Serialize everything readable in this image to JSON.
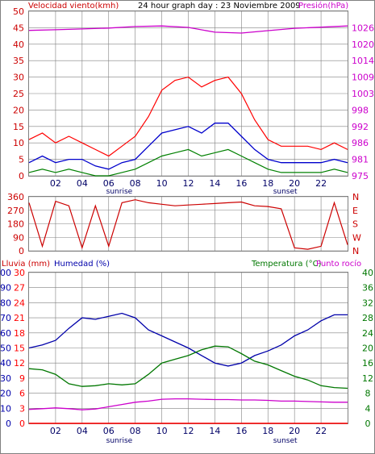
{
  "header": {
    "left": "Velocidad viento(kmh)",
    "center": "24 hour graph day : 23 Noviembre 2009",
    "right": "Presión(hPa)"
  },
  "colors": {
    "wind_avg": "#0000cc",
    "wind_gust": "#ff0000",
    "wind_low": "#008000",
    "pressure": "#cc00cc",
    "direction": "#cc0000",
    "humidity": "#0000aa",
    "temperature": "#007700",
    "dewpoint": "#cc00cc",
    "rain": "#ff0000",
    "grid": "#808080",
    "axis_labels_left": "#cc0000",
    "axis_labels_right": "#cc00cc"
  },
  "x_axis": {
    "hour_ticks": [
      "02",
      "04",
      "06",
      "08",
      "10",
      "12",
      "14",
      "16",
      "18",
      "20",
      "22"
    ],
    "sunrise": "sunrise",
    "sunset": "sunset"
  },
  "chart_data": [
    {
      "type": "line",
      "panel": "wind-pressure",
      "ylabel_left": "Velocidad viento(kmh)",
      "ylabel_right": "Presión(hPa)",
      "left_ticks": [
        "0",
        "5",
        "10",
        "15",
        "20",
        "25",
        "30",
        "35",
        "40",
        "45",
        "50"
      ],
      "right_ticks": [
        "975",
        "981",
        "986",
        "992",
        "998",
        "1003",
        "1009",
        "1014",
        "1020",
        "1026"
      ],
      "ylim_left": [
        0,
        50
      ],
      "ylim_right": [
        975,
        1031
      ],
      "series": [
        {
          "name": "Presión(hPa)",
          "x": [
            0,
            2,
            4,
            6,
            8,
            10,
            12,
            14,
            16,
            18,
            20,
            22,
            24
          ],
          "values": [
            1024.5,
            1024.7,
            1025.0,
            1025.3,
            1025.8,
            1026.0,
            1025.5,
            1023.9,
            1023.6,
            1024.4,
            1025.2,
            1025.6,
            1026.0
          ]
        },
        {
          "name": "Velocidad viento(kmh)",
          "x": [
            0,
            1,
            2,
            3,
            4,
            5,
            6,
            7,
            8,
            9,
            10,
            11,
            12,
            13,
            14,
            15,
            16,
            17,
            18,
            19,
            20,
            21,
            22,
            23,
            24
          ],
          "values": [
            4,
            6,
            4,
            5,
            5,
            3,
            2,
            4,
            5,
            9,
            13,
            14,
            15,
            13,
            16,
            16,
            12,
            8,
            5,
            4,
            4,
            4,
            4,
            5,
            4
          ]
        },
        {
          "name": "gust",
          "x": [
            0,
            1,
            2,
            3,
            4,
            5,
            6,
            7,
            8,
            9,
            10,
            11,
            12,
            13,
            14,
            15,
            16,
            17,
            18,
            19,
            20,
            21,
            22,
            23,
            24
          ],
          "values": [
            11,
            13,
            10,
            12,
            10,
            8,
            6,
            9,
            12,
            18,
            26,
            29,
            30,
            27,
            29,
            30,
            25,
            17,
            11,
            9,
            9,
            9,
            8,
            10,
            8
          ]
        },
        {
          "name": "low",
          "x": [
            0,
            1,
            2,
            3,
            4,
            5,
            6,
            7,
            8,
            9,
            10,
            11,
            12,
            13,
            14,
            15,
            16,
            17,
            18,
            19,
            20,
            21,
            22,
            23,
            24
          ],
          "values": [
            1,
            2,
            1,
            2,
            1,
            0,
            0,
            1,
            2,
            4,
            6,
            7,
            8,
            6,
            7,
            8,
            6,
            4,
            2,
            1,
            1,
            1,
            1,
            2,
            1
          ]
        }
      ]
    },
    {
      "type": "line",
      "panel": "wind-direction",
      "left_ticks": [
        "0",
        "90",
        "180",
        "270",
        "360"
      ],
      "right_ticks": [
        "N",
        "E",
        "S",
        "W",
        "N"
      ],
      "ylim": [
        0,
        360
      ],
      "series": [
        {
          "name": "direction",
          "x": [
            0,
            1,
            2,
            3,
            4,
            5,
            6,
            7,
            8,
            9,
            10,
            11,
            12,
            13,
            14,
            15,
            16,
            17,
            18,
            19,
            20,
            21,
            22,
            23,
            24
          ],
          "values": [
            320,
            30,
            330,
            300,
            20,
            300,
            30,
            320,
            340,
            320,
            310,
            300,
            305,
            310,
            315,
            320,
            325,
            300,
            295,
            280,
            20,
            10,
            30,
            320,
            40
          ]
        }
      ]
    },
    {
      "type": "line",
      "panel": "humidity-temperature",
      "ylabel_left_1": "Lluvia (mm)",
      "ylabel_left_2": "Humedad (%)",
      "ylabel_right_1": "Temperatura (°C)",
      "ylabel_right_2": "Punto rocío",
      "rain_ticks": [
        "0",
        "3",
        "6",
        "9",
        "12",
        "15",
        "18",
        "21",
        "24",
        "27",
        "30"
      ],
      "humidity_ticks": [
        "0",
        "10",
        "20",
        "30",
        "40",
        "50",
        "60",
        "70",
        "80",
        "90",
        "100"
      ],
      "temp_ticks": [
        "0",
        "4",
        "8",
        "12",
        "16",
        "20",
        "24",
        "28",
        "32",
        "36",
        "40"
      ],
      "ylim_rain": [
        0,
        30
      ],
      "ylim_humidity": [
        0,
        100
      ],
      "ylim_temp": [
        0,
        40
      ],
      "series": [
        {
          "name": "Humedad (%)",
          "x": [
            0,
            1,
            2,
            3,
            4,
            5,
            6,
            7,
            8,
            9,
            10,
            11,
            12,
            13,
            14,
            15,
            16,
            17,
            18,
            19,
            20,
            21,
            22,
            23,
            24
          ],
          "values": [
            50,
            52,
            55,
            63,
            70,
            69,
            71,
            73,
            70,
            62,
            58,
            54,
            50,
            45,
            40,
            38,
            40,
            45,
            48,
            52,
            58,
            62,
            68,
            72,
            72
          ]
        },
        {
          "name": "Temperatura (°C)",
          "x": [
            0,
            1,
            2,
            3,
            4,
            5,
            6,
            7,
            8,
            9,
            10,
            11,
            12,
            13,
            14,
            15,
            16,
            17,
            18,
            19,
            20,
            21,
            22,
            23,
            24
          ],
          "values": [
            14.5,
            14.2,
            13.0,
            10.5,
            9.8,
            10.0,
            10.5,
            10.2,
            10.5,
            13.0,
            16.0,
            17.0,
            18.0,
            19.5,
            20.5,
            20.3,
            18.5,
            16.5,
            15.5,
            14.0,
            12.5,
            11.5,
            10.0,
            9.5,
            9.3
          ]
        },
        {
          "name": "Punto rocío",
          "x": [
            0,
            1,
            2,
            3,
            4,
            5,
            6,
            7,
            8,
            9,
            10,
            11,
            12,
            13,
            14,
            15,
            16,
            17,
            18,
            19,
            20,
            21,
            22,
            23,
            24
          ],
          "values": [
            3.7,
            3.9,
            4.1,
            3.9,
            3.6,
            3.8,
            4.4,
            5.0,
            5.6,
            5.9,
            6.4,
            6.5,
            6.5,
            6.4,
            6.3,
            6.3,
            6.2,
            6.2,
            6.1,
            5.9,
            5.9,
            5.8,
            5.7,
            5.6,
            5.6
          ]
        },
        {
          "name": "Lluvia (mm)",
          "x": [
            0,
            24
          ],
          "values": [
            0,
            0
          ]
        }
      ]
    }
  ]
}
